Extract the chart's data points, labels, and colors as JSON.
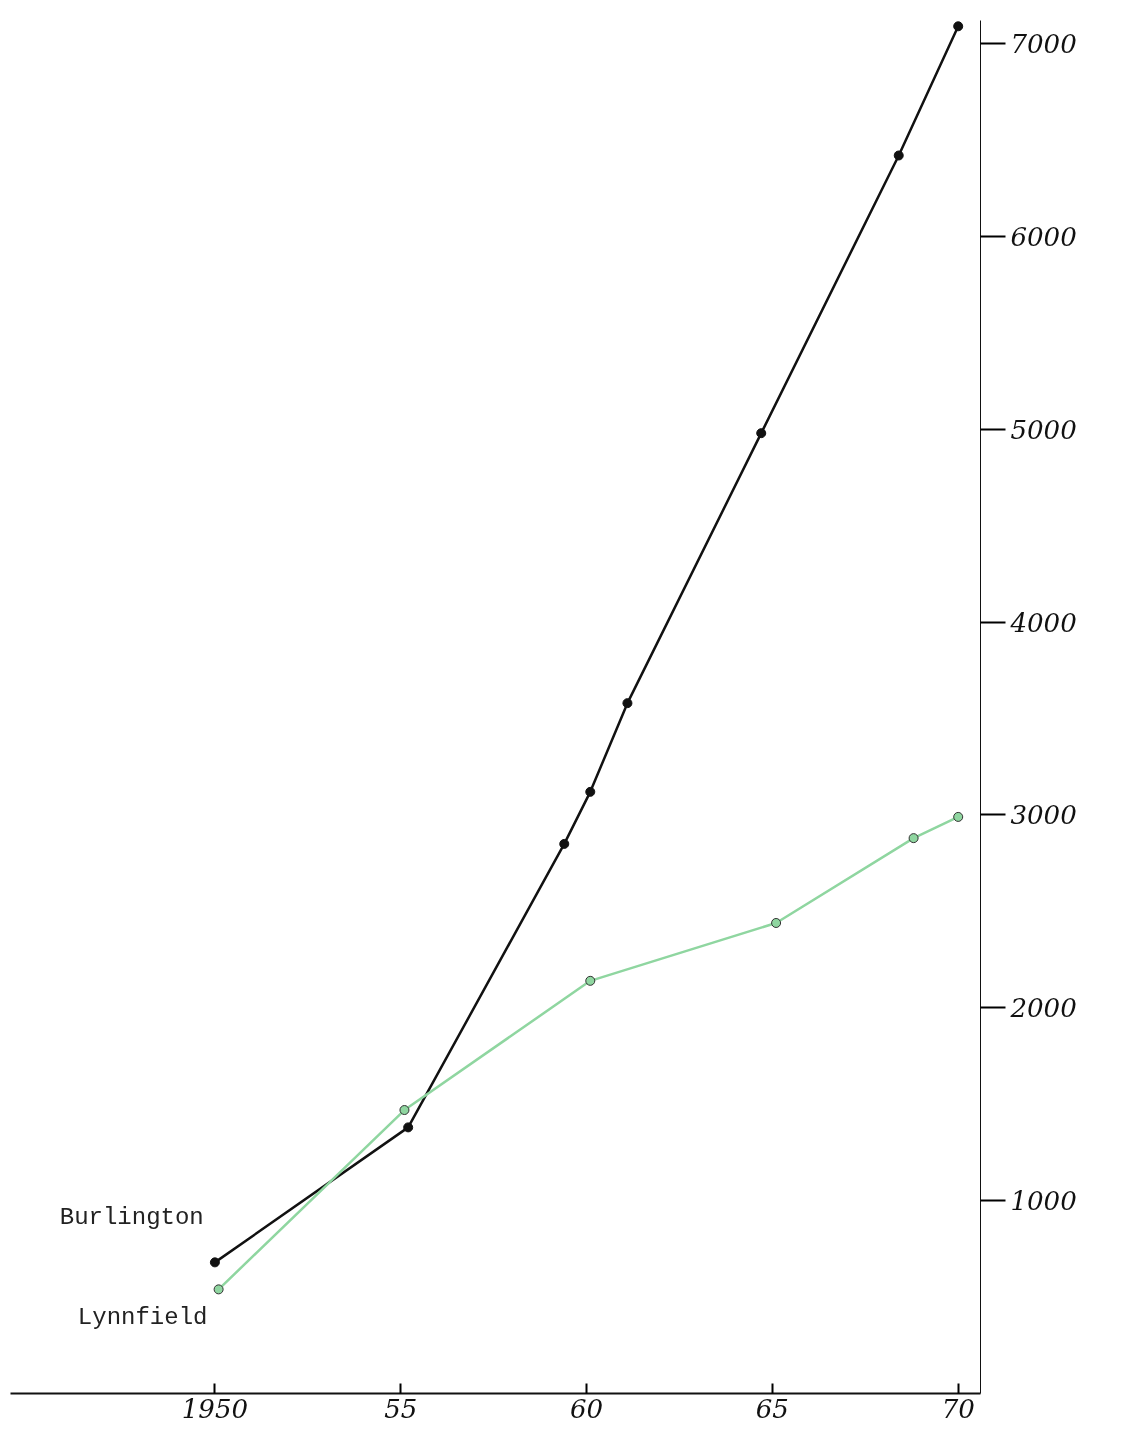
{
  "chart_data": {
    "type": "line",
    "xlim": [
      1944.5,
      1970.6
    ],
    "ylim": [
      0,
      7120
    ],
    "xticks": [
      1950,
      {
        "value": 1955,
        "label": "55"
      },
      {
        "value": 1960,
        "label": "60"
      },
      {
        "value": 1965,
        "label": "65"
      },
      {
        "value": 1970,
        "label": "70"
      }
    ],
    "yticks": [
      1000,
      2000,
      3000,
      4000,
      5000,
      6000,
      7000
    ],
    "grid": false,
    "marker": "circle",
    "line_style": "solid",
    "series": [
      {
        "name": "Burlington",
        "color": "#111111",
        "x": [
          1950,
          1955.2,
          1959.4,
          1960.1,
          1961.1,
          1964.7,
          1968.4,
          1970
        ],
        "values": [
          680,
          1380,
          2850,
          3120,
          3580,
          4980,
          6420,
          7090
        ]
      },
      {
        "name": "Lynnfield",
        "color": "#8fd6a0",
        "x": [
          1950.1,
          1955.1,
          1960.1,
          1965.1,
          1968.8,
          1970
        ],
        "values": [
          540,
          1470,
          2140,
          2440,
          2880,
          2990
        ]
      }
    ]
  }
}
